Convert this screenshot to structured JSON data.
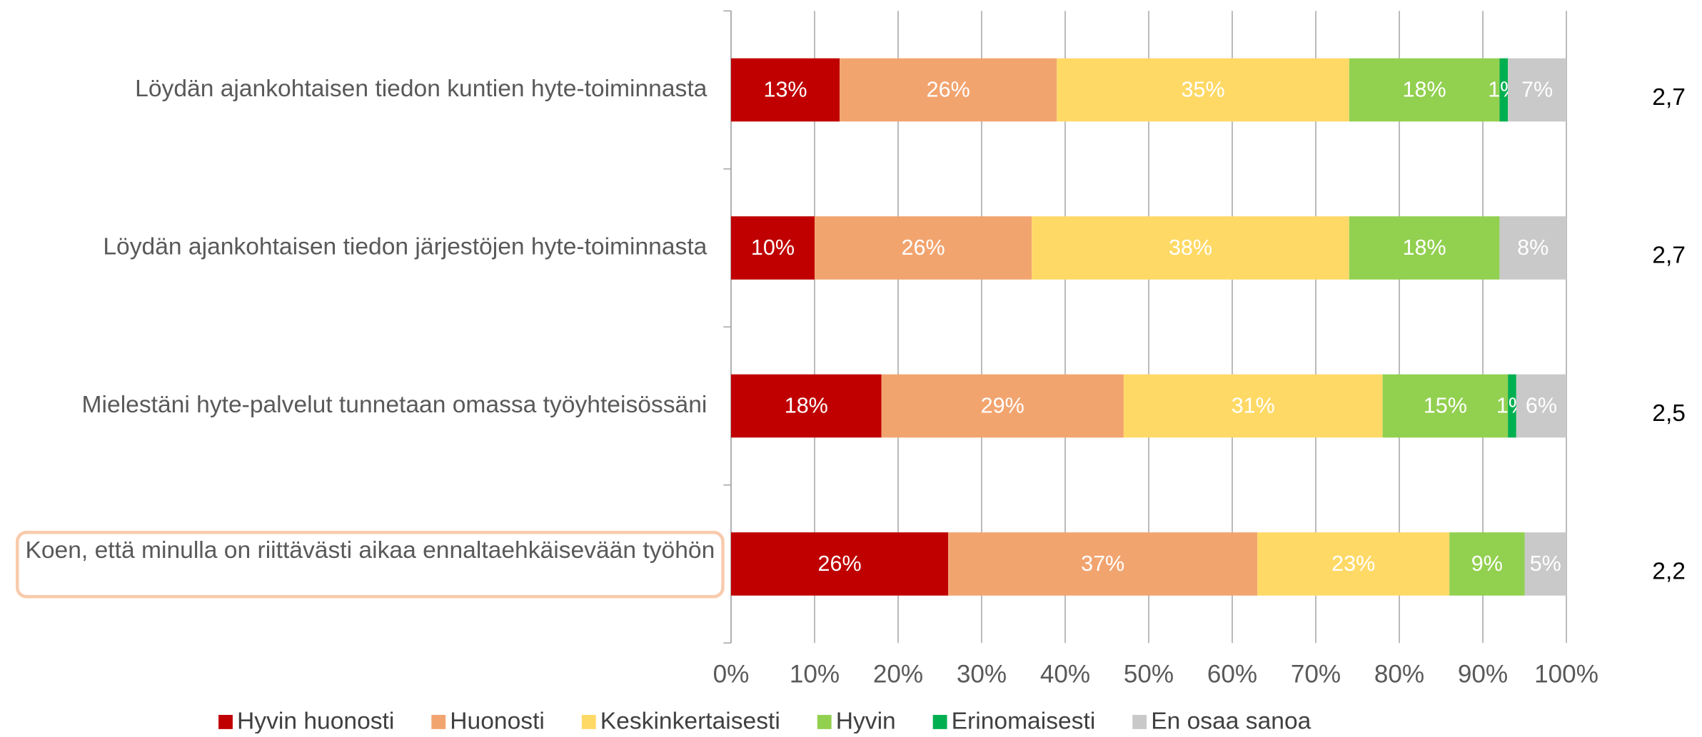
{
  "chart_data": {
    "type": "stacked_barh",
    "categories": [
      "Löydän ajankohtaisen tiedon kuntien hyte-toiminnasta",
      "Löydän ajankohtaisen tiedon järjestöjen hyte-toiminnasta",
      "Mielestäni hyte-palvelut tunnetaan omassa työyhteisössäni",
      "Koen, että minulla on riittävästi aikaa ennaltaehkäisevään työhön"
    ],
    "series": [
      {
        "name": "Hyvin huonosti",
        "color": "#c00000",
        "values": [
          13,
          10,
          18,
          26
        ],
        "value_labels": [
          "13%",
          "10%",
          "18%",
          "26%"
        ]
      },
      {
        "name": "Huonosti",
        "color": "#f2a46f",
        "values": [
          26,
          26,
          29,
          37
        ],
        "value_labels": [
          "26%",
          "26%",
          "29%",
          "37%"
        ]
      },
      {
        "name": "Keskinkertaisesti",
        "color": "#ffd966",
        "values": [
          35,
          38,
          31,
          23
        ],
        "value_labels": [
          "35%",
          "38%",
          "31%",
          "23%"
        ]
      },
      {
        "name": "Hyvin",
        "color": "#92d050",
        "values": [
          18,
          18,
          15,
          9
        ],
        "value_labels": [
          "18%",
          "18%",
          "15%",
          "9%"
        ]
      },
      {
        "name": "Erinomaisesti",
        "color": "#00b050",
        "values": [
          1,
          null,
          1,
          null
        ],
        "value_labels": [
          "1%",
          null,
          "1%",
          null
        ]
      },
      {
        "name": "En osaa sanoa",
        "color": "#c9c9c9",
        "values": [
          7,
          8,
          6,
          5
        ],
        "value_labels": [
          "7%",
          "8%",
          "6%",
          "5%"
        ]
      }
    ],
    "annotations": [
      "2,7",
      "2,7",
      "2,5",
      "2,2"
    ],
    "xlim": [
      0,
      100
    ],
    "xticks": [
      {
        "value": 0,
        "label": "0%"
      },
      {
        "value": 10,
        "label": "10%"
      },
      {
        "value": 20,
        "label": "20%"
      },
      {
        "value": 30,
        "label": "30%"
      },
      {
        "value": 40,
        "label": "40%"
      },
      {
        "value": 50,
        "label": "50%"
      },
      {
        "value": 60,
        "label": "60%"
      },
      {
        "value": 70,
        "label": "70%"
      },
      {
        "value": 80,
        "label": "80%"
      },
      {
        "value": 90,
        "label": "90%"
      },
      {
        "value": 100,
        "label": "100%"
      }
    ],
    "grid": true,
    "legend": "bottom"
  }
}
